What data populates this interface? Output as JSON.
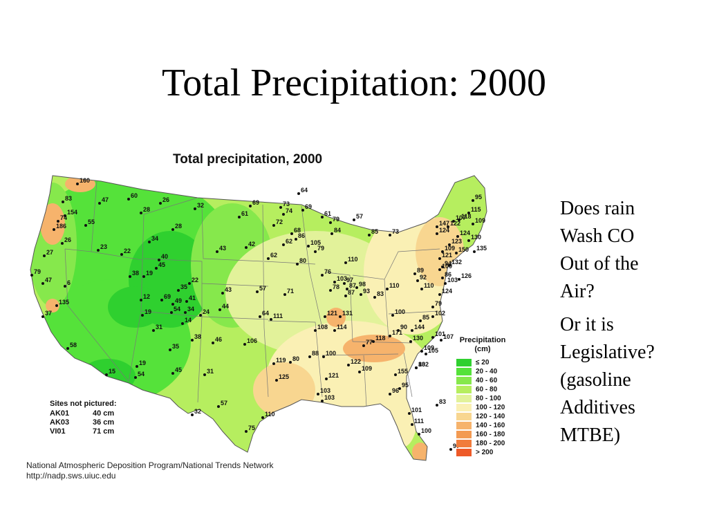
{
  "slide": {
    "title": "Total Precipitation: 2000"
  },
  "map": {
    "heading": "Total precipitation, 2000",
    "legend": {
      "title_line1": "Precipitation",
      "title_line2": "(cm)",
      "items": [
        {
          "label": "≤ 20",
          "color": "#2fd02f"
        },
        {
          "label": "20 - 40",
          "color": "#55e23a"
        },
        {
          "label": "40 - 60",
          "color": "#86e84c"
        },
        {
          "label": "60 - 80",
          "color": "#b6ee5f"
        },
        {
          "label": "80 - 100",
          "color": "#e2f29a"
        },
        {
          "label": "100 - 120",
          "color": "#faf0b4"
        },
        {
          "label": "120 - 140",
          "color": "#f8d690"
        },
        {
          "label": "140 - 160",
          "color": "#f6b36c"
        },
        {
          "label": "160 - 180",
          "color": "#f39a52"
        },
        {
          "label": "180 - 200",
          "color": "#f17c3c"
        },
        {
          "label": "> 200",
          "color": "#ee5a28"
        }
      ]
    },
    "sites_not_pictured": {
      "title": "Sites not pictured:",
      "rows": [
        {
          "site": "AK01",
          "value": "40 cm"
        },
        {
          "site": "AK03",
          "value": "36 cm"
        },
        {
          "site": "VI01",
          "value": "71 cm"
        }
      ]
    },
    "credit_line1": "National Atmospheric Deposition Program/National Trends Network",
    "credit_line2": "http://nadp.sws.uiuc.edu",
    "site_values": [
      "160",
      "47",
      "60",
      "26",
      "83",
      "154",
      "74",
      "186",
      "55",
      "32",
      "28",
      "28",
      "26",
      "23",
      "22",
      "34",
      "27",
      "40",
      "45",
      "79",
      "38",
      "19",
      "47",
      "6",
      "12",
      "69",
      "49",
      "41",
      "35",
      "22",
      "135",
      "37",
      "19",
      "54",
      "34",
      "24",
      "14",
      "31",
      "38",
      "46",
      "58",
      "35",
      "19",
      "15",
      "54",
      "45",
      "31",
      "32",
      "57",
      "69",
      "61",
      "42",
      "43",
      "43",
      "57",
      "44",
      "64",
      "62",
      "73",
      "74",
      "72",
      "69",
      "68",
      "86",
      "62",
      "105",
      "80",
      "61",
      "79",
      "84",
      "110",
      "79",
      "71",
      "76",
      "78",
      "87",
      "93",
      "87",
      "103",
      "97",
      "98",
      "121",
      "114",
      "131",
      "108",
      "111",
      "100",
      "88",
      "119",
      "106",
      "80",
      "121",
      "103",
      "122",
      "109",
      "77",
      "125",
      "103",
      "110",
      "75",
      "57",
      "85",
      "73",
      "64",
      "89",
      "92",
      "83",
      "110",
      "86",
      "94",
      "109",
      "110",
      "100",
      "90",
      "144",
      "130",
      "118",
      "171",
      "109",
      "101",
      "107",
      "105",
      "155",
      "102",
      "95",
      "96",
      "101",
      "111",
      "100",
      "83",
      "83",
      "97",
      "147",
      "107",
      "124",
      "122",
      "124",
      "123",
      "121",
      "109",
      "150",
      "132",
      "130",
      "118",
      "115",
      "95",
      "109",
      "126",
      "103",
      "135",
      "79",
      "102",
      "85",
      "124"
    ]
  },
  "side_text": {
    "block1": [
      "Does rain",
      "Wash CO",
      "Out of the",
      "Air?"
    ],
    "block2": [
      "Or it is",
      "Legislative?",
      "(gasoline",
      "Additives",
      "MTBE)"
    ]
  }
}
